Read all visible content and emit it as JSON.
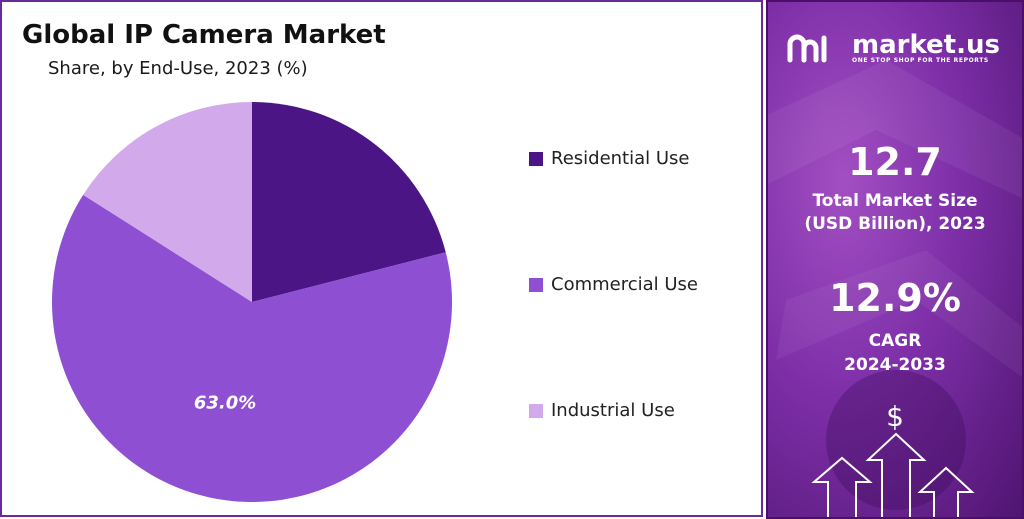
{
  "title": "Global IP Camera Market",
  "subtitle": "Share, by End-Use, 2023 (%)",
  "chart_data": {
    "type": "pie",
    "title": "Global IP Camera Market",
    "subtitle": "Share, by End-Use, 2023 (%)",
    "slices": [
      {
        "label": "Residential Use",
        "value": 21.0,
        "color": "#4b1585",
        "show_label": false
      },
      {
        "label": "Commercial Use",
        "value": 63.0,
        "color": "#8e4fd3",
        "show_label": true,
        "display": "63.0%"
      },
      {
        "label": "Industrial Use",
        "value": 16.0,
        "color": "#d2a9ea",
        "show_label": false
      }
    ],
    "legend_position": "right"
  },
  "sidebar": {
    "brand": "market.us",
    "tagline": "ONE STOP SHOP FOR THE REPORTS",
    "market_size_value": "12.7",
    "market_size_label_1": "Total Market Size",
    "market_size_label_2": "(USD Billion), 2023",
    "cagr_value": "12.9%",
    "cagr_label_1": "CAGR",
    "cagr_label_2": "2024-2033",
    "dollar_icon": "$",
    "background_colors": [
      "#a24fc2",
      "#7e2fa8",
      "#4e1470"
    ]
  }
}
